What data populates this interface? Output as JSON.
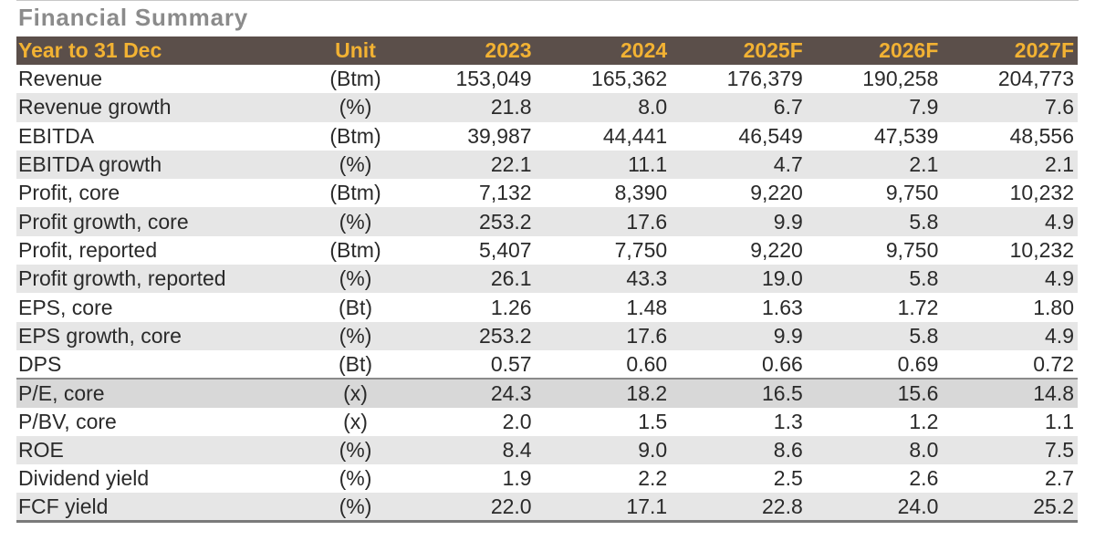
{
  "title": "Financial Summary",
  "header": {
    "label": "Year to 31 Dec",
    "unit": "Unit",
    "years": [
      "2023",
      "2024",
      "2025F",
      "2026F",
      "2027F"
    ]
  },
  "rows": [
    {
      "label": "Revenue",
      "unit": "(Btm)",
      "values": [
        "153,049",
        "165,362",
        "176,379",
        "190,258",
        "204,773"
      ]
    },
    {
      "label": "Revenue growth",
      "unit": "(%)",
      "values": [
        "21.8",
        "8.0",
        "6.7",
        "7.9",
        "7.6"
      ]
    },
    {
      "label": "EBITDA",
      "unit": "(Btm)",
      "values": [
        "39,987",
        "44,441",
        "46,549",
        "47,539",
        "48,556"
      ]
    },
    {
      "label": "EBITDA growth",
      "unit": "(%)",
      "values": [
        "22.1",
        "11.1",
        "4.7",
        "2.1",
        "2.1"
      ]
    },
    {
      "label": "Profit, core",
      "unit": "(Btm)",
      "values": [
        "7,132",
        "8,390",
        "9,220",
        "9,750",
        "10,232"
      ]
    },
    {
      "label": "Profit growth, core",
      "unit": "(%)",
      "values": [
        "253.2",
        "17.6",
        "9.9",
        "5.8",
        "4.9"
      ]
    },
    {
      "label": "Profit, reported",
      "unit": "(Btm)",
      "values": [
        "5,407",
        "7,750",
        "9,220",
        "9,750",
        "10,232"
      ]
    },
    {
      "label": "Profit growth, reported",
      "unit": "(%)",
      "values": [
        "26.1",
        "43.3",
        "19.0",
        "5.8",
        "4.9"
      ]
    },
    {
      "label": "EPS, core",
      "unit": "(Bt)",
      "values": [
        "1.26",
        "1.48",
        "1.63",
        "1.72",
        "1.80"
      ]
    },
    {
      "label": "EPS growth, core",
      "unit": "(%)",
      "values": [
        "253.2",
        "17.6",
        "9.9",
        "5.8",
        "4.9"
      ]
    },
    {
      "label": "DPS",
      "unit": "(Bt)",
      "values": [
        "0.57",
        "0.60",
        "0.66",
        "0.69",
        "0.72"
      ]
    },
    {
      "label": "P/E, core",
      "unit": "(x)",
      "values": [
        "24.3",
        "18.2",
        "16.5",
        "15.6",
        "14.8"
      ]
    },
    {
      "label": "P/BV, core",
      "unit": "(x)",
      "values": [
        "2.0",
        "1.5",
        "1.3",
        "1.2",
        "1.1"
      ]
    },
    {
      "label": "ROE",
      "unit": "(%)",
      "values": [
        "8.4",
        "9.0",
        "8.6",
        "8.0",
        "7.5"
      ]
    },
    {
      "label": "Dividend yield",
      "unit": "(%)",
      "values": [
        "1.9",
        "2.2",
        "2.5",
        "2.6",
        "2.7"
      ]
    },
    {
      "label": "FCF yield",
      "unit": "(%)",
      "values": [
        "22.0",
        "17.1",
        "22.8",
        "24.0",
        "25.2"
      ]
    }
  ]
}
